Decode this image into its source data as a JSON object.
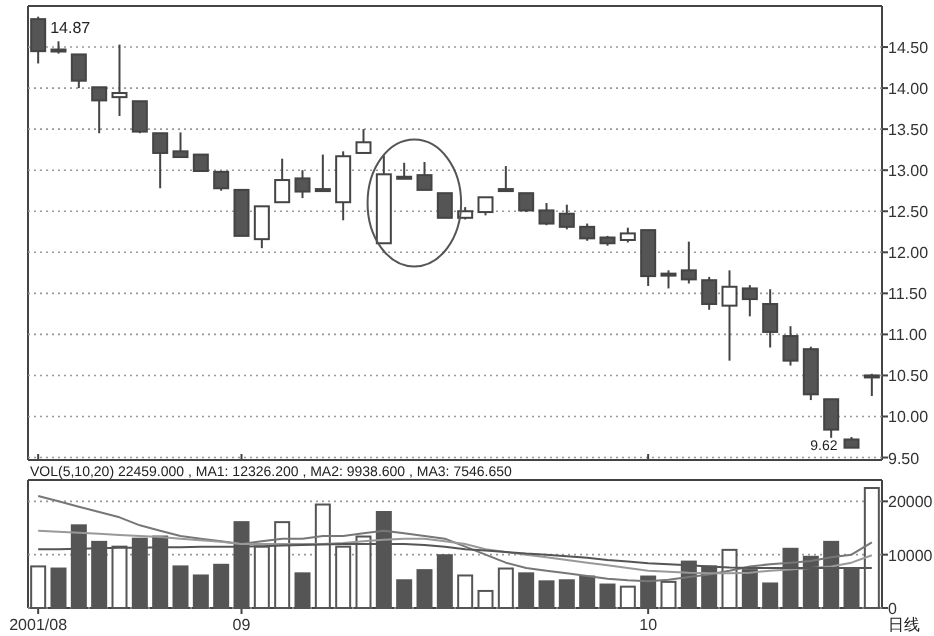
{
  "chart_data": [
    {
      "type": "candlestick",
      "tick_labels": "y",
      "categories": [
        "2001/08",
        null,
        null,
        null,
        null,
        null,
        null,
        null,
        null,
        null,
        "09",
        null,
        null,
        null,
        null,
        null,
        null,
        null,
        null,
        null,
        null,
        null,
        null,
        null,
        null,
        null,
        null,
        null,
        null,
        null,
        "10",
        null,
        null,
        null,
        null,
        null,
        null,
        null,
        null,
        null,
        null,
        null
      ],
      "ohlc": [
        [
          14.84,
          14.87,
          14.3,
          14.45
        ],
        [
          14.47,
          14.57,
          14.42,
          14.45
        ],
        [
          14.41,
          14.41,
          14.0,
          14.09
        ],
        [
          14.01,
          14.01,
          13.45,
          13.85
        ],
        [
          13.89,
          14.53,
          13.66,
          13.94
        ],
        [
          13.84,
          13.84,
          13.45,
          13.47
        ],
        [
          13.45,
          13.45,
          12.78,
          13.21
        ],
        [
          13.23,
          13.46,
          13.16,
          13.16
        ],
        [
          13.19,
          13.19,
          12.99,
          12.99
        ],
        [
          12.98,
          12.98,
          12.75,
          12.78
        ],
        [
          12.76,
          12.76,
          12.2,
          12.2
        ],
        [
          12.16,
          12.56,
          12.05,
          12.56
        ],
        [
          12.61,
          13.14,
          12.61,
          12.88
        ],
        [
          12.9,
          13.0,
          12.66,
          12.74
        ],
        [
          12.76,
          13.19,
          12.76,
          12.77
        ],
        [
          12.61,
          13.23,
          12.39,
          13.17
        ],
        [
          13.21,
          13.5,
          13.21,
          13.34
        ],
        [
          12.11,
          13.18,
          12.11,
          12.95
        ],
        [
          12.91,
          13.09,
          12.9,
          12.92
        ],
        [
          12.94,
          13.1,
          12.76,
          12.76
        ],
        [
          12.72,
          12.72,
          12.42,
          12.42
        ],
        [
          12.42,
          12.55,
          12.4,
          12.5
        ],
        [
          12.49,
          12.67,
          12.45,
          12.67
        ],
        [
          12.76,
          13.05,
          12.75,
          12.77
        ],
        [
          12.72,
          12.72,
          12.49,
          12.51
        ],
        [
          12.51,
          12.6,
          12.33,
          12.35
        ],
        [
          12.47,
          12.58,
          12.28,
          12.31
        ],
        [
          12.31,
          12.35,
          12.14,
          12.17
        ],
        [
          12.18,
          12.2,
          12.08,
          12.11
        ],
        [
          12.15,
          12.3,
          12.12,
          12.23
        ],
        [
          12.27,
          12.27,
          11.59,
          11.71
        ],
        [
          11.74,
          11.78,
          11.56,
          11.74
        ],
        [
          11.78,
          12.13,
          11.62,
          11.67
        ],
        [
          11.66,
          11.7,
          11.3,
          11.37
        ],
        [
          11.35,
          11.78,
          10.68,
          11.58
        ],
        [
          11.56,
          11.6,
          11.22,
          11.43
        ],
        [
          11.37,
          11.55,
          10.84,
          11.03
        ],
        [
          10.98,
          11.1,
          10.62,
          10.68
        ],
        [
          10.82,
          10.85,
          10.2,
          10.27
        ],
        [
          10.21,
          10.21,
          9.74,
          9.84
        ],
        [
          9.72,
          9.75,
          9.62,
          9.62
        ],
        [
          10.5,
          10.52,
          10.25,
          10.5
        ]
      ],
      "colors": [
        "#555555",
        "#555555",
        "#555555",
        "#555555",
        "#ffffff",
        "#555555",
        "#555555",
        "#555555",
        "#555555",
        "#555555",
        "#555555",
        "#ffffff",
        "#ffffff",
        "#555555",
        "#ffffff",
        "#ffffff",
        "#ffffff",
        "#ffffff",
        "#ffffff",
        "#555555",
        "#555555",
        "#ffffff",
        "#ffffff",
        "#ffffff",
        "#555555",
        "#555555",
        "#555555",
        "#555555",
        "#555555",
        "#ffffff",
        "#555555",
        "#555555",
        "#555555",
        "#555555",
        "#ffffff",
        "#555555",
        "#555555",
        "#555555",
        "#555555",
        "#555555",
        "#555555",
        "#555555"
      ],
      "ylim": [
        9.47,
        15.0
      ],
      "yticks": [
        {
          "value": 9.5,
          "label": "9.50"
        },
        {
          "value": 10,
          "label": "10.00"
        },
        {
          "value": 10.5,
          "label": "10.50"
        },
        {
          "value": 11,
          "label": "11.00"
        },
        {
          "value": 11.5,
          "label": "11.50"
        },
        {
          "value": 12,
          "label": "12.00"
        },
        {
          "value": 12.5,
          "label": "12.50"
        },
        {
          "value": 13,
          "label": "13.00"
        },
        {
          "value": 13.5,
          "label": "13.50"
        },
        {
          "value": 14,
          "label": "14.00"
        },
        {
          "value": 14.5,
          "label": "14.50"
        }
      ],
      "grid": "y",
      "annotations": [
        "14.87",
        "9.62"
      ]
    },
    {
      "type": "bar",
      "categories": [
        "2001/08",
        null,
        null,
        null,
        null,
        null,
        null,
        null,
        null,
        null,
        "09",
        null,
        null,
        null,
        null,
        null,
        null,
        null,
        null,
        null,
        null,
        null,
        null,
        null,
        null,
        null,
        null,
        null,
        null,
        null,
        "10",
        null,
        null,
        null,
        null,
        null,
        null,
        null,
        null,
        null,
        null,
        null
      ],
      "series": [
        {
          "type": "bar",
          "color": "#555555",
          "values": [
            7800,
            7400,
            15500,
            12400,
            11500,
            13000,
            13400,
            7800,
            6100,
            8100,
            16100,
            11500,
            16100,
            6500,
            19400,
            11500,
            13400,
            18000,
            5200,
            7100,
            9900,
            6100,
            3200,
            7400,
            6500,
            5000,
            5200,
            5900,
            4400,
            4000,
            5900,
            4900,
            8700,
            7800,
            10900,
            7100,
            4600,
            11100,
            9600,
            12400,
            7500,
            22500
          ],
          "colors": [
            "#ffffff",
            "#555555",
            "#555555",
            "#555555",
            "#ffffff",
            "#555555",
            "#555555",
            "#555555",
            "#555555",
            "#555555",
            "#555555",
            "#ffffff",
            "#ffffff",
            "#555555",
            "#ffffff",
            "#ffffff",
            "#ffffff",
            "#555555",
            "#555555",
            "#555555",
            "#555555",
            "#ffffff",
            "#ffffff",
            "#ffffff",
            "#555555",
            "#555555",
            "#555555",
            "#555555",
            "#555555",
            "#ffffff",
            "#555555",
            "#ffffff",
            "#555555",
            "#555555",
            "#ffffff",
            "#555555",
            "#555555",
            "#555555",
            "#555555",
            "#555555",
            "#555555",
            "#ffffff"
          ]
        },
        {
          "type": "line",
          "color": "#777777",
          "values": [
            21000,
            20000,
            19000,
            18000,
            17000,
            15500,
            14500,
            13500,
            13000,
            12500,
            12000,
            12500,
            13000,
            13000,
            13500,
            13500,
            14000,
            14500,
            14000,
            13500,
            13000,
            11500,
            10000,
            8500,
            7500,
            7000,
            6500,
            6000,
            5500,
            5200,
            5000,
            5300,
            5800,
            6300,
            7000,
            7800,
            8200,
            8500,
            8800,
            9500,
            10000,
            12300
          ]
        },
        {
          "type": "line",
          "color": "#999999",
          "values": [
            14500,
            14300,
            14100,
            13900,
            13700,
            13500,
            13300,
            13000,
            12700,
            12400,
            12000,
            12000,
            12000,
            12000,
            12000,
            12200,
            12500,
            12800,
            13000,
            13000,
            12500,
            12000,
            11000,
            10500,
            10000,
            9500,
            9000,
            8500,
            8000,
            7500,
            7000,
            6800,
            6600,
            6500,
            6500,
            6600,
            7000,
            7200,
            7500,
            7800,
            8500,
            9900
          ]
        },
        {
          "type": "line",
          "color": "#555555",
          "values": [
            11000,
            11000,
            11100,
            11200,
            11300,
            11300,
            11400,
            11400,
            11500,
            11500,
            11500,
            11600,
            11700,
            11800,
            11900,
            12000,
            12000,
            12000,
            12000,
            11800,
            11500,
            11000,
            10800,
            10500,
            10200,
            10000,
            9700,
            9400,
            9000,
            8700,
            8400,
            8200,
            8000,
            7800,
            7600,
            7500,
            7500,
            7500,
            7500,
            7500,
            7500,
            7500
          ]
        }
      ],
      "ylim": [
        0,
        24000
      ],
      "yticks": [
        0,
        10000,
        20000
      ],
      "grid": "y",
      "annotations": [
        "VOL(5,10,20)  22459.000 , MA1: 12326.200 , MA2: 9938.600 , MA3: 7546.650",
        "日线"
      ]
    }
  ]
}
